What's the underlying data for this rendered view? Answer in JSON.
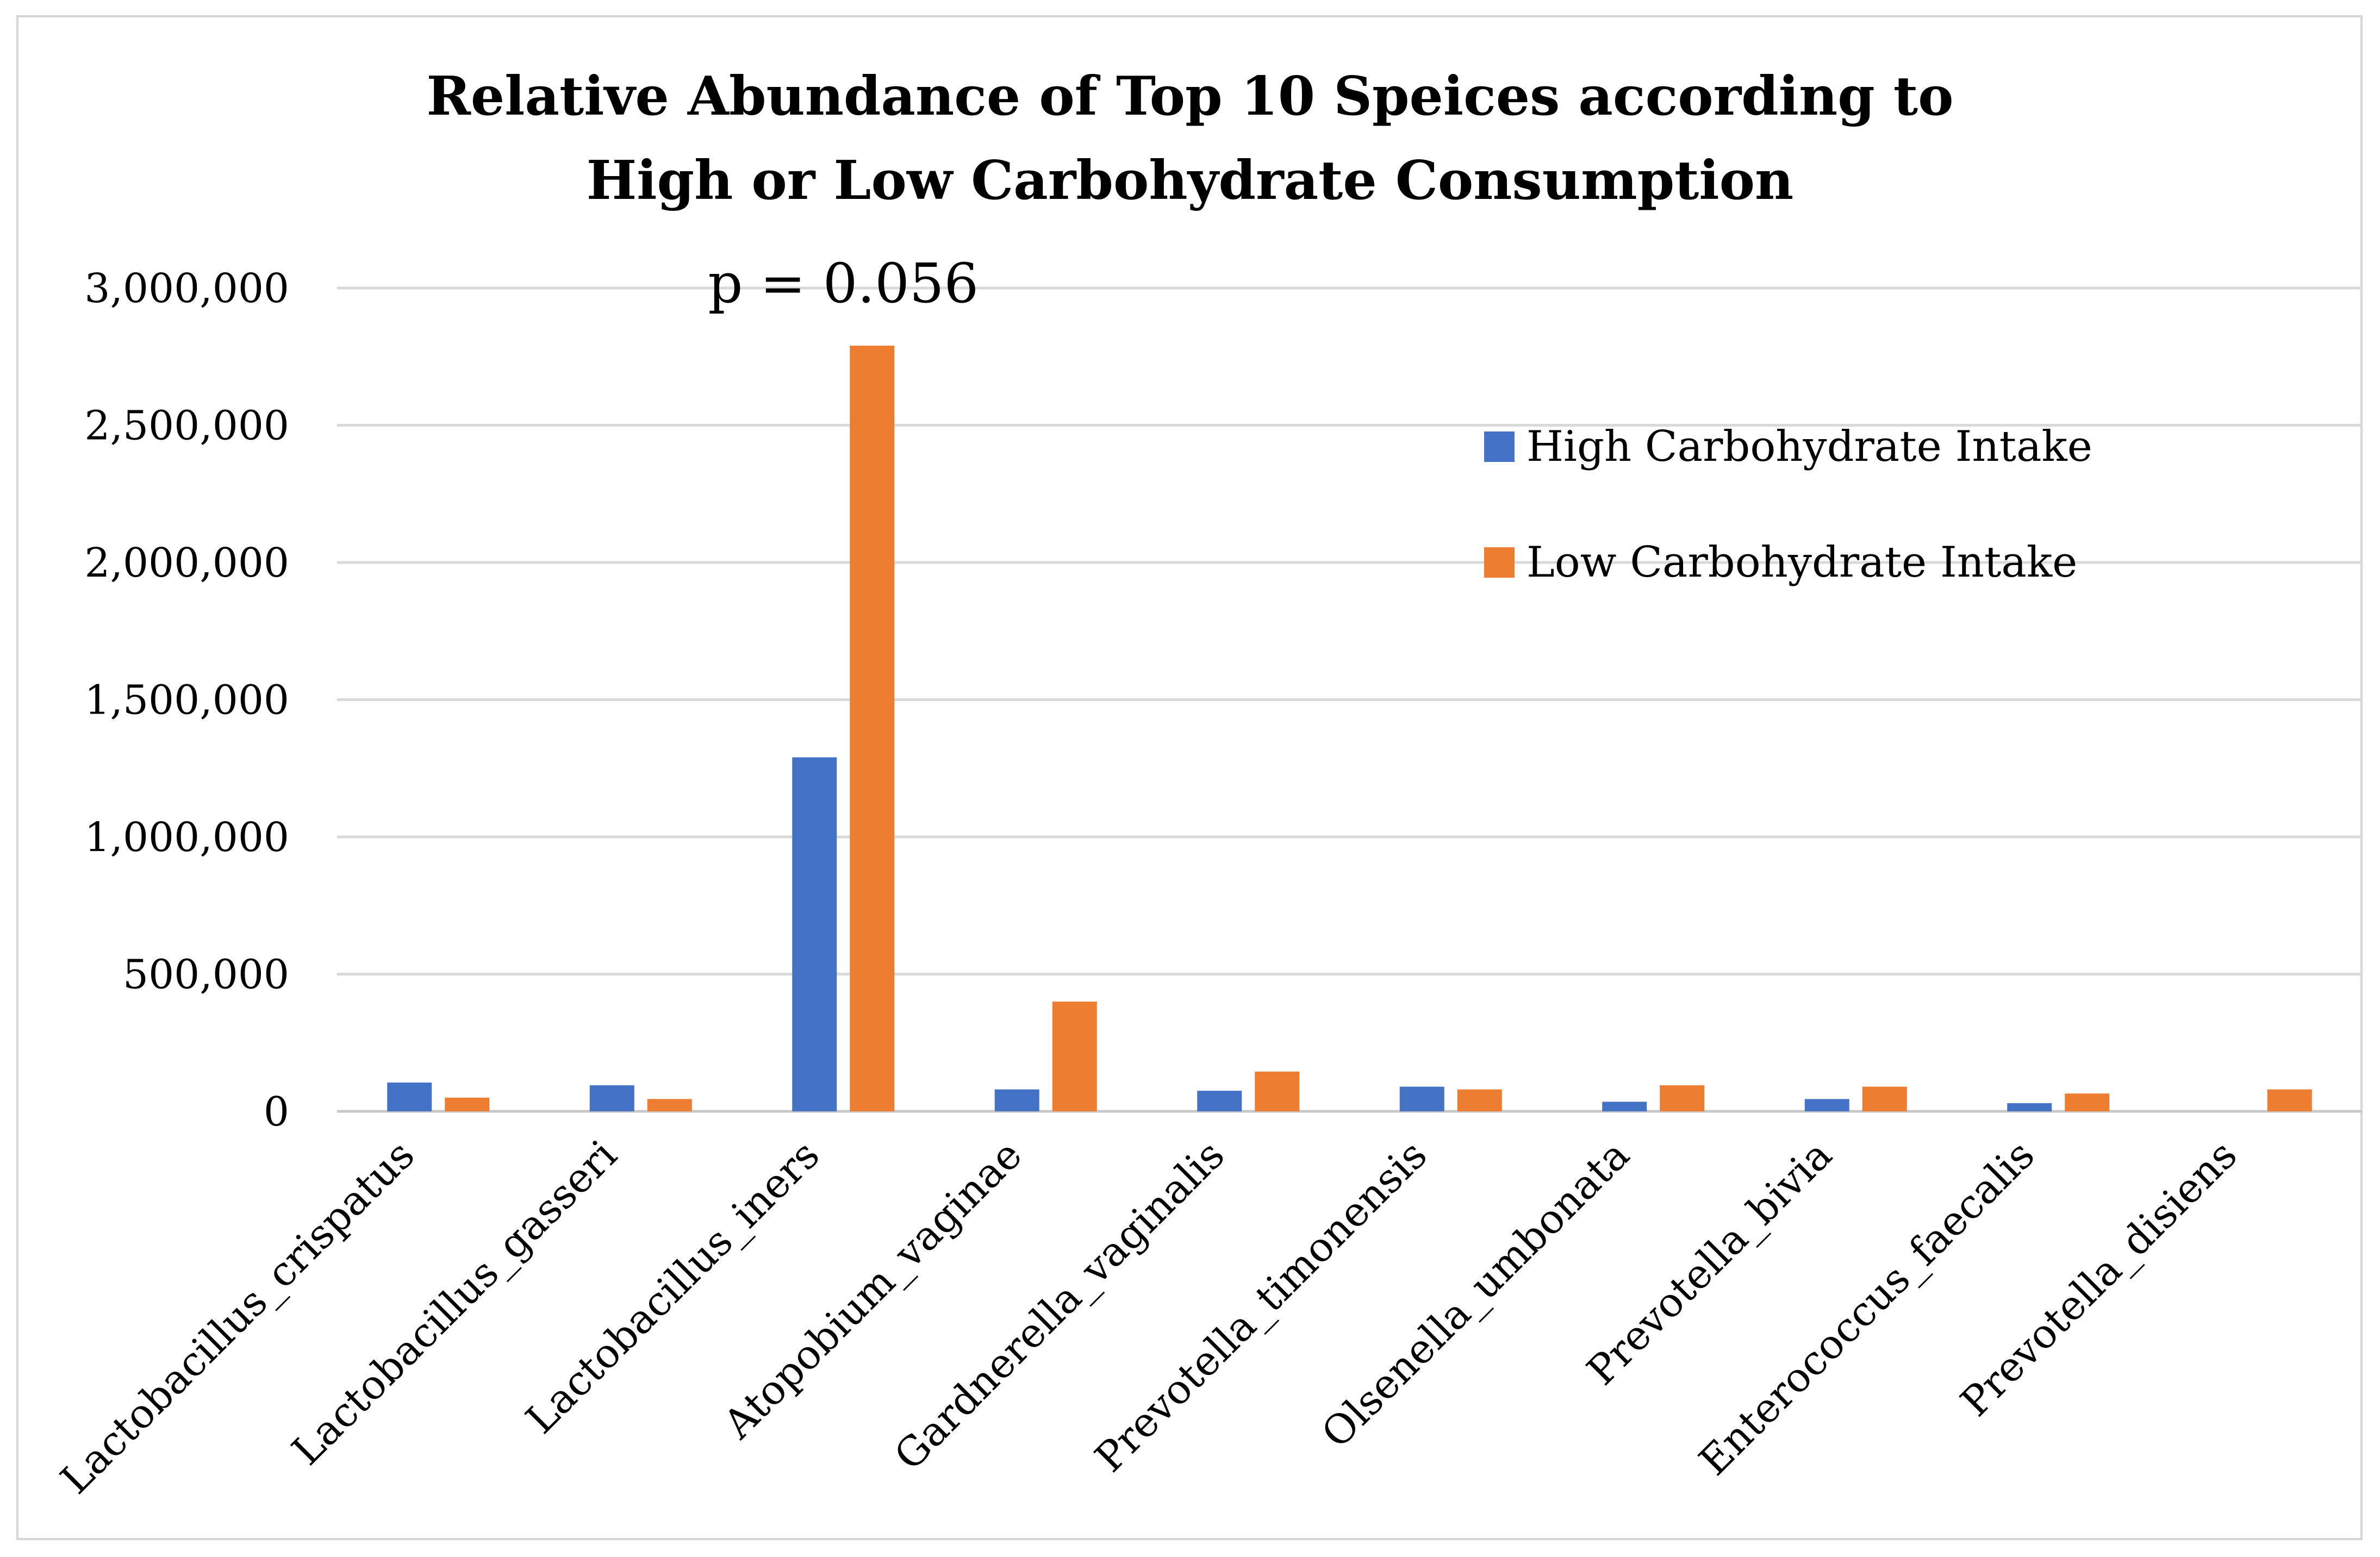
{
  "chart_data": {
    "type": "bar",
    "title": [
      "Relative Abundance of Top 10 Speices according to",
      "High or Low Carbohydrate Consumption"
    ],
    "xlabel": "",
    "ylabel": "",
    "ylim": [
      0,
      3000000
    ],
    "yticks": [
      0,
      500000,
      1000000,
      1500000,
      2000000,
      2500000,
      3000000
    ],
    "ytick_labels": [
      "0",
      "500,000",
      "1,000,000",
      "1,500,000",
      "2,000,000",
      "2,500,000",
      "3,000,000"
    ],
    "grid": true,
    "legend_position": "right",
    "categories": [
      "Lactobacillus_crispatus",
      "Lactobacillus_gasseri",
      "Lactobacillus_iners",
      "Atopobium_vaginae",
      "Gardnerella_vaginalis",
      "Prevotella_timonensis",
      "Olsenella_umbonata",
      "Prevotella_bivia",
      "Enterococcus_faecalis",
      "Prevotella_disiens"
    ],
    "series": [
      {
        "name": "High Carbohydrate Intake",
        "color": "#4472C4",
        "values": [
          105000,
          95000,
          1290000,
          80000,
          75000,
          90000,
          35000,
          45000,
          30000,
          0
        ]
      },
      {
        "name": "Low Carbohydrate Intake",
        "color": "#ED7D31",
        "values": [
          50000,
          45000,
          2790000,
          400000,
          145000,
          80000,
          95000,
          90000,
          65000,
          80000
        ]
      }
    ],
    "annotations": [
      {
        "text": "p = 0.056",
        "category": "Lactobacillus_iners"
      }
    ]
  }
}
